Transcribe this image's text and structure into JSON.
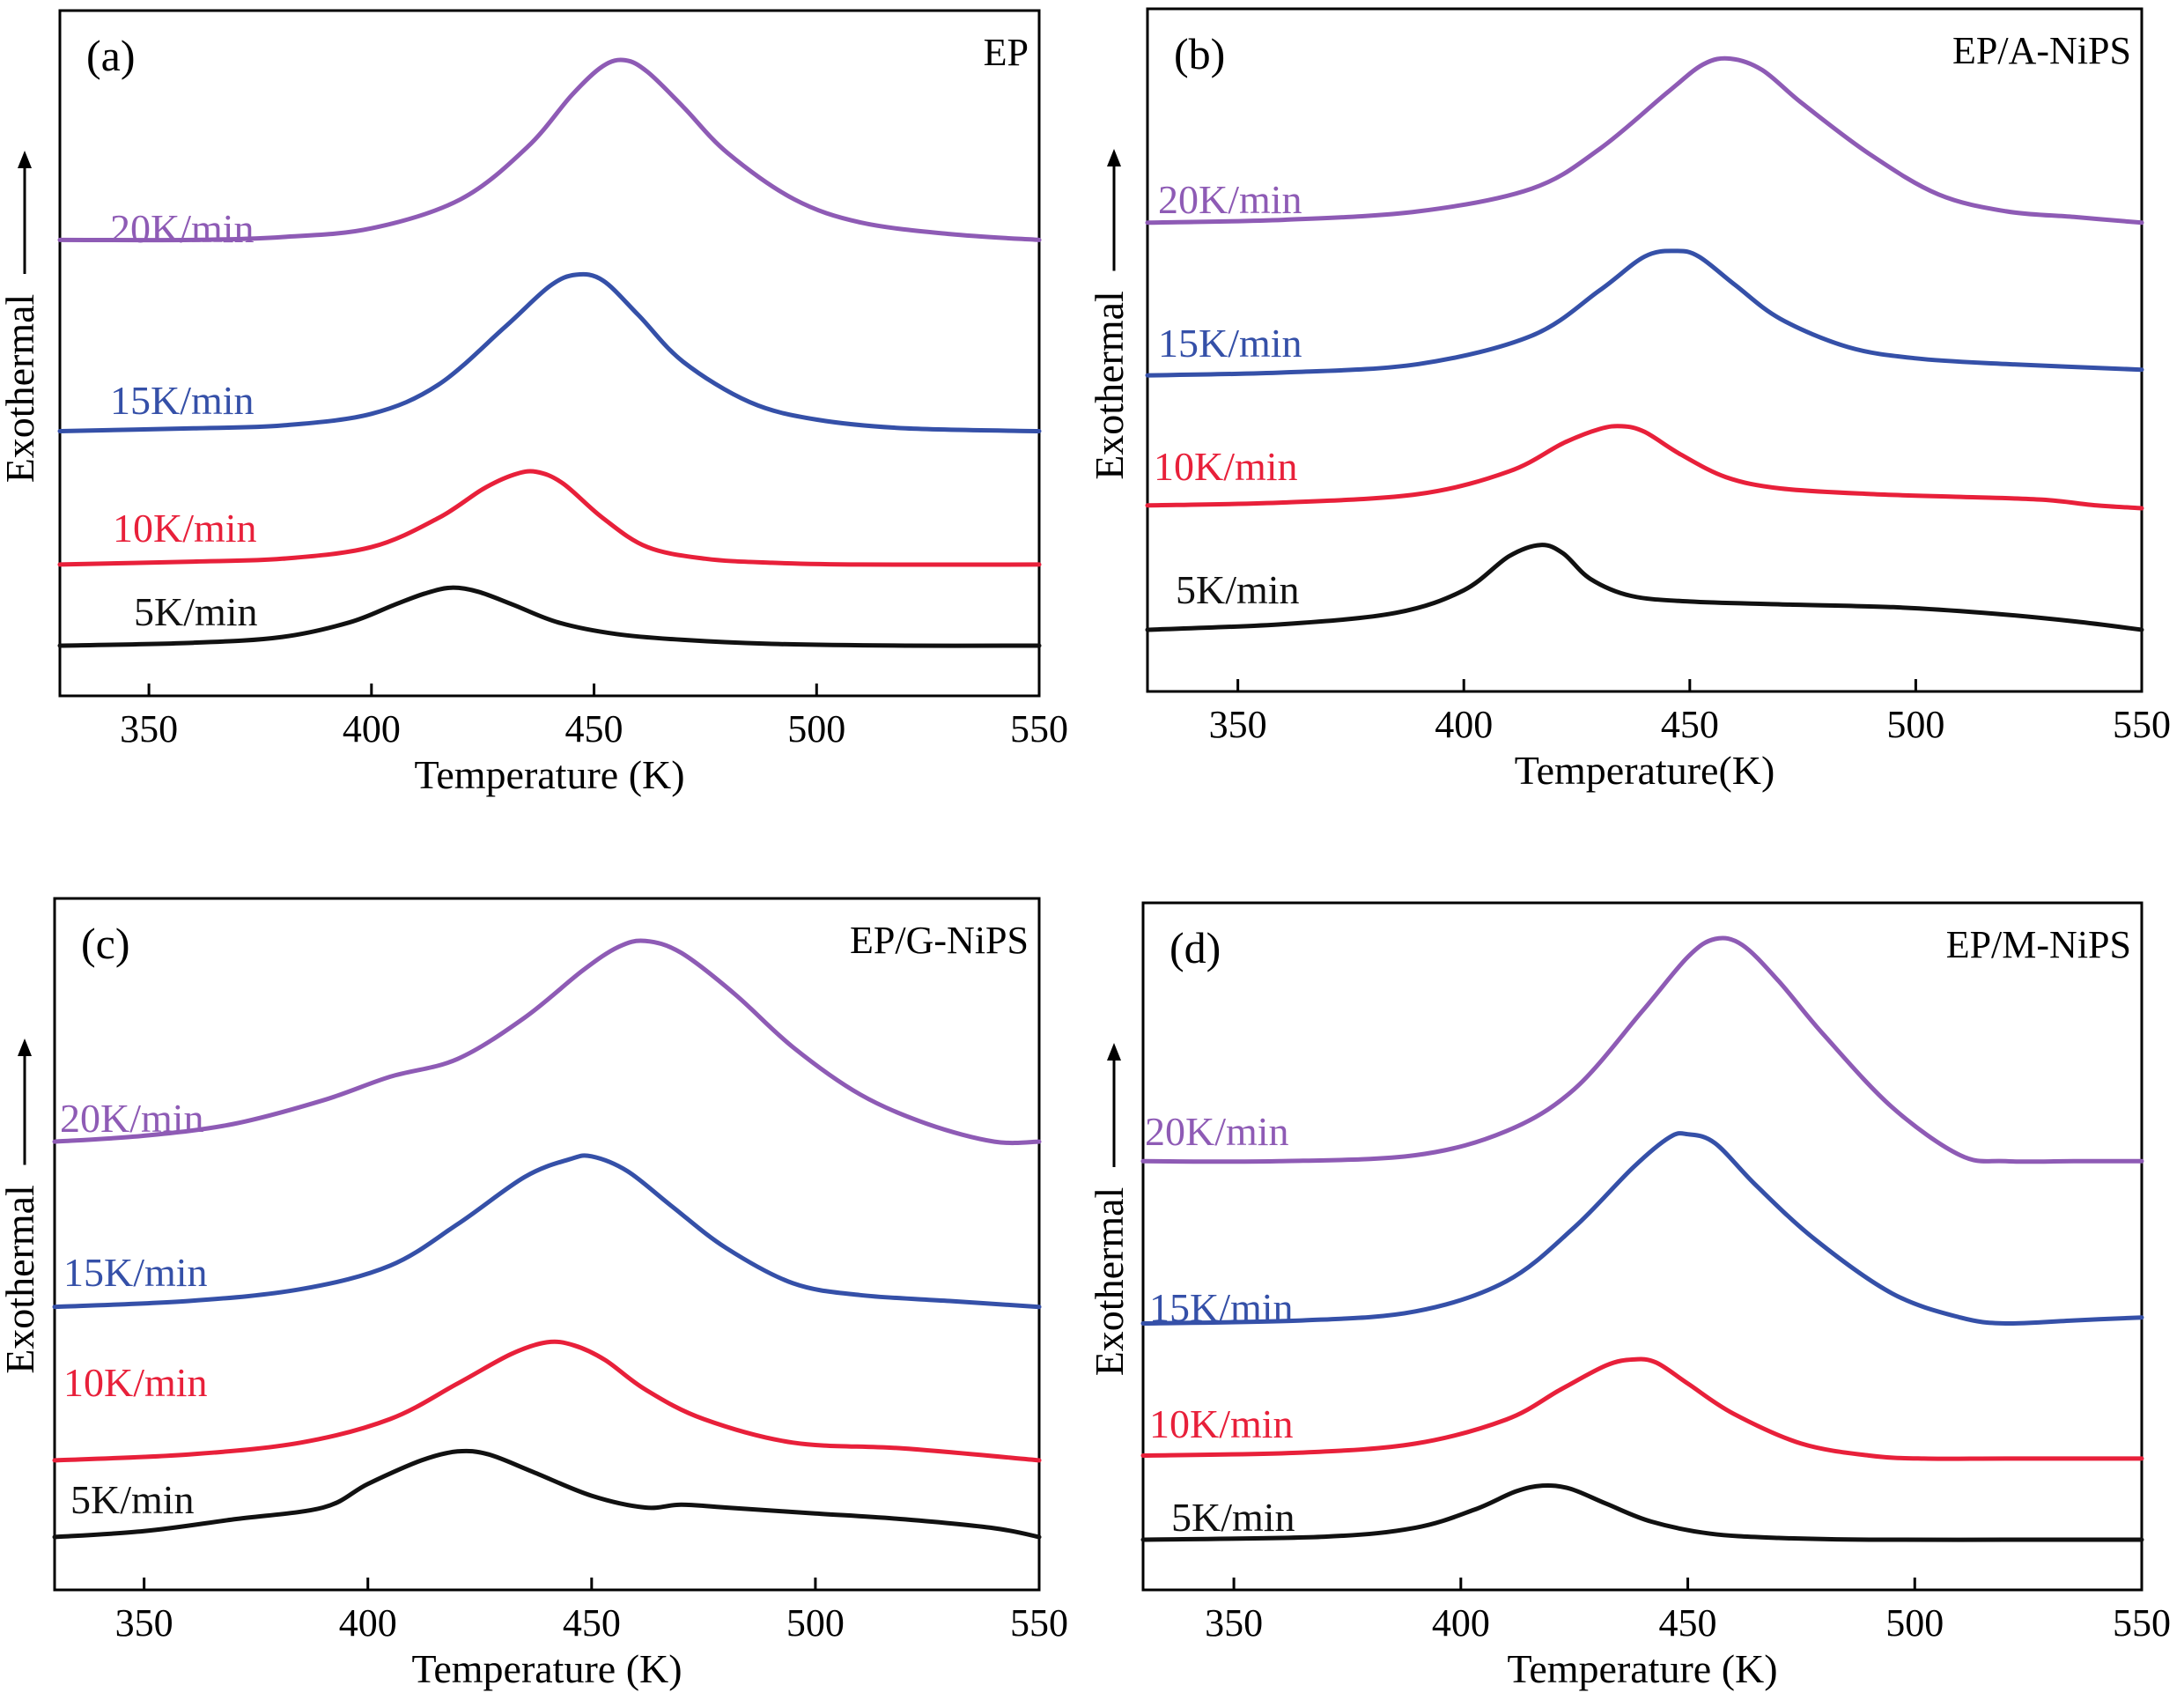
{
  "colors": {
    "20K/min": "#8e5bb5",
    "15K/min": "#3550a8",
    "10K/min": "#e8203a",
    "5K/min": "#111111"
  },
  "chart_data": [
    {
      "type": "line",
      "panel": "(a)",
      "title": "EP",
      "xlabel": "Temperature (K)",
      "ylabel": "Exothermal",
      "xlim": [
        330,
        550
      ],
      "xticks": [
        350,
        400,
        450,
        500,
        550
      ],
      "series": [
        {
          "name": "20K/min",
          "x": [
            330,
            360,
            380,
            400,
            420,
            435,
            445,
            452,
            457,
            462,
            470,
            480,
            495,
            510,
            530,
            550
          ],
          "y": [
            70,
            70,
            70.5,
            72,
            77,
            86,
            95,
            100,
            101,
            99,
            93,
            85,
            77,
            73,
            71,
            70
          ]
        },
        {
          "name": "15K/min",
          "x": [
            330,
            360,
            380,
            400,
            415,
            430,
            440,
            446,
            452,
            460,
            470,
            485,
            500,
            520,
            550
          ],
          "y": [
            37,
            37.5,
            38,
            40,
            45,
            55,
            62,
            64,
            63,
            57,
            49,
            42,
            39,
            37.5,
            37
          ]
        },
        {
          "name": "10K/min",
          "x": [
            330,
            360,
            380,
            400,
            415,
            425,
            432,
            437,
            443,
            452,
            462,
            475,
            490,
            510,
            550
          ],
          "y": [
            14,
            14.5,
            15,
            17,
            22,
            27,
            29.5,
            30,
            28,
            22,
            17,
            15,
            14.3,
            14,
            14
          ]
        },
        {
          "name": "5K/min",
          "x": [
            330,
            360,
            380,
            395,
            405,
            412,
            418,
            424,
            432,
            442,
            455,
            470,
            490,
            520,
            550
          ],
          "y": [
            0,
            0.5,
            1.5,
            4,
            7,
            9,
            10,
            9.3,
            7,
            4,
            2,
            1,
            0.3,
            0,
            0
          ]
        }
      ]
    },
    {
      "type": "line",
      "panel": "(b)",
      "title": "EP/A-NiPS",
      "xlabel": "Temperature(K)",
      "ylabel": "Exothermal",
      "xlim": [
        330,
        550
      ],
      "xticks": [
        350,
        400,
        450,
        500,
        550
      ],
      "series": [
        {
          "name": "20K/min",
          "x": [
            330,
            360,
            390,
            415,
            430,
            445,
            453,
            459,
            466,
            475,
            490,
            505,
            520,
            535,
            550
          ],
          "y": [
            72,
            72.5,
            74,
            78,
            85,
            95,
            100,
            101,
            99,
            93,
            84,
            77,
            74,
            73,
            72
          ]
        },
        {
          "name": "15K/min",
          "x": [
            330,
            360,
            390,
            415,
            430,
            440,
            447,
            452,
            460,
            470,
            485,
            500,
            520,
            550
          ],
          "y": [
            45,
            45.5,
            47,
            52,
            60,
            66,
            67,
            66,
            61,
            55,
            50,
            48,
            47,
            46
          ]
        },
        {
          "name": "10K/min",
          "x": [
            330,
            360,
            390,
            410,
            422,
            430,
            435,
            440,
            448,
            458,
            470,
            490,
            510,
            528,
            540,
            550
          ],
          "y": [
            22,
            22.5,
            24,
            28,
            33,
            35.5,
            36,
            35,
            31,
            27,
            25,
            24,
            23.5,
            23,
            22,
            21.5
          ]
        },
        {
          "name": "5K/min",
          "x": [
            330,
            360,
            385,
            400,
            410,
            417,
            422,
            428,
            437,
            450,
            470,
            495,
            515,
            535,
            550
          ],
          "y": [
            0,
            1,
            3,
            7,
            13,
            15,
            13.5,
            9,
            6,
            5,
            4.5,
            4,
            3,
            1.5,
            0
          ]
        }
      ]
    },
    {
      "type": "line",
      "panel": "(c)",
      "title": "EP/G-NiPS",
      "xlabel": "Temperature (K)",
      "ylabel": "Exothermal",
      "xlim": [
        330,
        550
      ],
      "xticks": [
        350,
        400,
        450,
        500,
        550
      ],
      "series": [
        {
          "name": "20K/min",
          "x": [
            330,
            350,
            370,
            390,
            405,
            420,
            435,
            448,
            456,
            462,
            470,
            482,
            495,
            510,
            525,
            540,
            550
          ],
          "y": [
            67,
            68,
            70,
            74,
            78,
            81,
            88,
            96,
            100,
            101,
            99,
            92,
            83,
            75,
            70,
            67,
            67
          ]
        },
        {
          "name": "15K/min",
          "x": [
            330,
            360,
            385,
            405,
            420,
            435,
            445,
            450,
            458,
            468,
            480,
            495,
            510,
            530,
            550
          ],
          "y": [
            39,
            40,
            42,
            46,
            53,
            61,
            64,
            64.5,
            62,
            56,
            49,
            43,
            41,
            40,
            39
          ]
        },
        {
          "name": "10K/min",
          "x": [
            330,
            360,
            385,
            405,
            420,
            432,
            440,
            446,
            453,
            462,
            475,
            495,
            520,
            550
          ],
          "y": [
            13,
            14,
            16,
            20,
            26,
            31,
            33,
            32.5,
            30,
            25,
            20,
            16,
            15,
            13
          ]
        },
        {
          "name": "5K/min",
          "x": [
            330,
            350,
            370,
            390,
            400,
            412,
            420,
            427,
            437,
            450,
            462,
            470,
            480,
            500,
            520,
            540,
            550
          ],
          "y": [
            0,
            1,
            3,
            5,
            9,
            13,
            14.5,
            14,
            11,
            7,
            5,
            5.5,
            5,
            4,
            3,
            1.5,
            0
          ]
        }
      ]
    },
    {
      "type": "line",
      "panel": "(d)",
      "title": "EP/M-NiPS",
      "xlabel": "Temperature (K)",
      "ylabel": "Exothermal",
      "xlim": [
        330,
        550
      ],
      "xticks": [
        350,
        400,
        450,
        500,
        550
      ],
      "series": [
        {
          "name": "20K/min",
          "x": [
            330,
            360,
            390,
            410,
            425,
            440,
            450,
            456,
            462,
            470,
            480,
            495,
            510,
            520,
            535,
            550
          ],
          "y": [
            63,
            63,
            64,
            68,
            75,
            88,
            97,
            100,
            99,
            93,
            84,
            72,
            64,
            63,
            63,
            63
          ]
        },
        {
          "name": "15K/min",
          "x": [
            330,
            365,
            390,
            410,
            425,
            438,
            446,
            450,
            456,
            465,
            478,
            495,
            510,
            520,
            535,
            550
          ],
          "y": [
            36,
            36.5,
            38,
            43,
            52,
            62,
            67,
            67.5,
            66,
            59,
            50,
            41,
            37,
            36,
            36.5,
            37
          ]
        },
        {
          "name": "10K/min",
          "x": [
            330,
            365,
            390,
            410,
            422,
            432,
            438,
            443,
            450,
            460,
            475,
            490,
            502,
            520,
            550
          ],
          "y": [
            14,
            14.5,
            16,
            20,
            25,
            29,
            30,
            29.5,
            26,
            21,
            16,
            14,
            13.5,
            13.5,
            13.5
          ]
        },
        {
          "name": "5K/min",
          "x": [
            330,
            370,
            390,
            403,
            412,
            418,
            424,
            432,
            442,
            455,
            470,
            490,
            520,
            550
          ],
          "y": [
            0,
            0.5,
            2,
            5,
            8,
            9,
            8.5,
            6,
            3,
            1,
            0.3,
            0,
            0,
            0
          ]
        }
      ]
    }
  ],
  "curve_labels": [
    [
      "20K/min",
      "15K/min",
      "10K/min",
      "5K/min"
    ],
    [
      "20K/min",
      "15K/min",
      "10K/min",
      "5K/min"
    ],
    [
      "20K/min",
      "15K/min",
      "10K/min",
      "5K/min"
    ],
    [
      "20K/min",
      "15K/min",
      "10K/min",
      "5K/min"
    ]
  ]
}
